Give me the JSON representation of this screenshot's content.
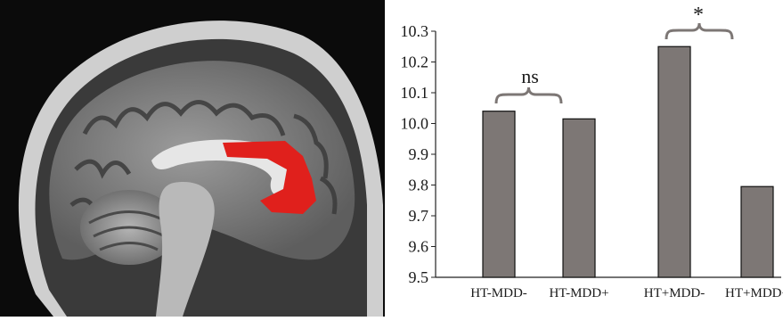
{
  "colors": {
    "bar_fill": "#7d7775",
    "bar_stroke": "#111111",
    "highlight": "#e0201c",
    "mri_background": "#0b0b0b"
  },
  "figure": {
    "left_panel": "sagittal-mri-brain-slice-with-highlighted-region",
    "icon": "brain-mri-image"
  },
  "chart_data": {
    "type": "bar",
    "categories": [
      "HT-MDD-",
      "HT-MDD+",
      "HT+MDD-",
      "HT+MDD+"
    ],
    "series": [
      {
        "values": [
          10.04,
          10.015,
          10.25,
          9.795
        ]
      }
    ],
    "title": "",
    "xlabel": "",
    "ylabel": "",
    "ylim": [
      9.5,
      10.3
    ],
    "yticks": [
      "9.5",
      "9.6",
      "9.7",
      "9.8",
      "9.9",
      "10.0",
      "10.1",
      "10.2",
      "10.3"
    ],
    "grid": false,
    "annotations": [
      {
        "text": "ns",
        "between": [
          "HT-MDD-",
          "HT-MDD+"
        ]
      },
      {
        "text": "*",
        "between": [
          "HT+MDD-",
          "HT+MDD+"
        ]
      }
    ]
  }
}
